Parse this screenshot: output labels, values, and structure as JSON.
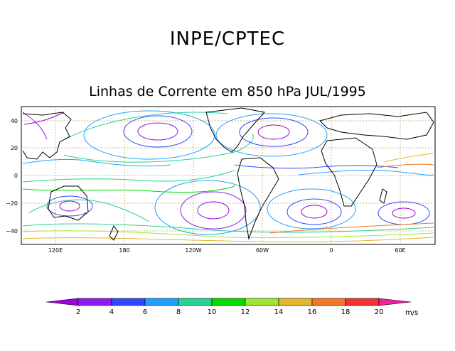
{
  "header": {
    "title": "INPE/CPTEC",
    "subtitle": "Linhas de Corrente em 850 hPa JUL/1995"
  },
  "map": {
    "lat_ticks": [
      "40",
      "20",
      "0",
      "−20",
      "−40"
    ],
    "lon_ticks": [
      "120E",
      "180",
      "120W",
      "60W",
      "0",
      "60E"
    ]
  },
  "colorbar": {
    "labels": [
      "2",
      "4",
      "6",
      "8",
      "10",
      "12",
      "14",
      "16",
      "18",
      "20"
    ],
    "unit": "m/s",
    "colors": [
      "#a000e0",
      "#8c1cf0",
      "#3246ff",
      "#1ea0ff",
      "#28d296",
      "#00dc00",
      "#a0e632",
      "#e6b42d",
      "#f07828",
      "#f03232",
      "#f020a0"
    ]
  }
}
